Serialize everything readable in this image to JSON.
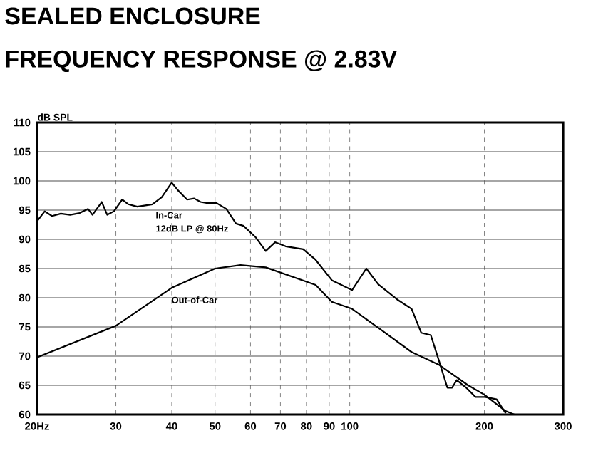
{
  "chart_data": {
    "type": "line",
    "title": "SEALED ENCLOSURE",
    "subtitle": "FREQUENCY RESPONSE @ 2.83V",
    "ylabel": "dB SPL",
    "log": "x",
    "xlim": [
      20,
      300
    ],
    "ylim": [
      60,
      110
    ],
    "xticks": [
      {
        "value": 20,
        "label": "20Hz"
      },
      30,
      40,
      50,
      60,
      70,
      80,
      90,
      100,
      200,
      300
    ],
    "yticks": [
      60,
      65,
      70,
      75,
      80,
      85,
      90,
      95,
      100,
      105,
      110
    ],
    "grid": true,
    "legend": false,
    "marker": "none",
    "line_style": "solid",
    "annotations": [
      "12dB LP @ 80Hz"
    ],
    "series": [
      {
        "name": "In-Car",
        "color": "#000000",
        "x": [
          20,
          20.8,
          21.6,
          22.6,
          23.7,
          24.9,
          26.0,
          26.6,
          27.9,
          28.7,
          29.7,
          31.0,
          32.0,
          33.5,
          36.2,
          38.0,
          40.0,
          41.3,
          43.3,
          44.9,
          46.4,
          48.1,
          50.4,
          53.0,
          55.7,
          57.9,
          61.7,
          64.9,
          68.1,
          71.9,
          78.7,
          83.9,
          91.2,
          101.2,
          108.9,
          115.8,
          127.7,
          137.5,
          144.5,
          151.8,
          158.5,
          165.3,
          169.4,
          173.5,
          182.1,
          191.1,
          200.6,
          213,
          223.3
        ],
        "values": [
          93.1,
          94.8,
          94.0,
          94.4,
          94.2,
          94.5,
          95.2,
          94.2,
          96.4,
          94.2,
          94.8,
          96.8,
          96.0,
          95.6,
          96.0,
          97.2,
          99.7,
          98.4,
          96.8,
          97.0,
          96.4,
          96.2,
          96.2,
          95.2,
          92.7,
          92.3,
          90.3,
          88.0,
          89.5,
          88.8,
          88.3,
          86.5,
          83.0,
          81.3,
          85.0,
          82.3,
          79.7,
          78.1,
          74.0,
          73.6,
          69.1,
          64.6,
          64.6,
          65.9,
          64.6,
          63.0,
          63.0,
          62.6,
          60.2
        ]
      },
      {
        "name": "Out-of-Car",
        "color": "#000000",
        "x": [
          20,
          30,
          40,
          50,
          57,
          64.9,
          83.9,
          91.2,
          101.2,
          118,
          137.5,
          158.5,
          184,
          200,
          223,
          233.5
        ],
        "values": [
          69.8,
          75.2,
          81.7,
          85.0,
          85.6,
          85.2,
          82.2,
          79.3,
          78.1,
          74.4,
          70.7,
          68.5,
          65.0,
          63.4,
          60.6,
          60.0
        ]
      }
    ]
  }
}
